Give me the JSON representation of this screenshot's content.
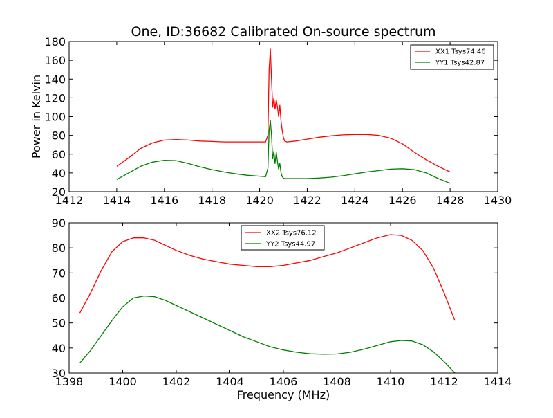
{
  "figure": {
    "title": "One, ID:36682 Calibrated On-source spectrum",
    "ylabel_top": "Power in Kelvin",
    "xlabel_bottom": "Frequency (MHz)"
  },
  "chart_data": [
    {
      "type": "line",
      "title": "One, ID:36682 Calibrated On-source spectrum",
      "xlabel": "",
      "ylabel": "Power in Kelvin",
      "xlim": [
        1412,
        1430
      ],
      "ylim": [
        20,
        180
      ],
      "xticks": [
        1412,
        1414,
        1416,
        1418,
        1420,
        1422,
        1424,
        1426,
        1428,
        1430
      ],
      "yticks": [
        20,
        40,
        60,
        80,
        100,
        120,
        140,
        160,
        180
      ],
      "grid": false,
      "legend": "top-right",
      "series": [
        {
          "name": "XX1 Tsys74.46",
          "color": "#ff0000",
          "x": [
            1414.0,
            1414.5,
            1415.0,
            1415.5,
            1416.0,
            1416.5,
            1417.0,
            1417.5,
            1418.0,
            1418.5,
            1419.0,
            1419.5,
            1420.0,
            1420.25,
            1420.35,
            1420.4,
            1420.45,
            1420.5,
            1420.55,
            1420.6,
            1420.65,
            1420.7,
            1420.75,
            1420.8,
            1420.85,
            1420.9,
            1420.95,
            1421.0,
            1421.05,
            1421.15,
            1421.5,
            1422.0,
            1422.5,
            1423.0,
            1423.5,
            1424.0,
            1424.5,
            1425.0,
            1425.5,
            1426.0,
            1426.5,
            1427.0,
            1427.5,
            1428.0
          ],
          "y": [
            47,
            56,
            66,
            72,
            75,
            75.5,
            75,
            74,
            73.5,
            73,
            73,
            73,
            73,
            73,
            80,
            150,
            172,
            140,
            110,
            120,
            108,
            118,
            110,
            100,
            112,
            95,
            85,
            78,
            74,
            73,
            74,
            76,
            78,
            79.5,
            80.5,
            81,
            81,
            80,
            77,
            71,
            62,
            54,
            47,
            41
          ]
        },
        {
          "name": "YY1 Tsys42.87",
          "color": "#008000",
          "x": [
            1414.0,
            1414.5,
            1415.0,
            1415.5,
            1416.0,
            1416.5,
            1417.0,
            1417.5,
            1418.0,
            1418.5,
            1419.0,
            1419.5,
            1420.0,
            1420.25,
            1420.35,
            1420.4,
            1420.45,
            1420.5,
            1420.55,
            1420.6,
            1420.65,
            1420.7,
            1420.75,
            1420.8,
            1420.85,
            1420.9,
            1420.95,
            1421.0,
            1421.05,
            1421.15,
            1421.5,
            1422.0,
            1422.5,
            1423.0,
            1423.5,
            1424.0,
            1424.5,
            1425.0,
            1425.5,
            1426.0,
            1426.5,
            1427.0,
            1427.5,
            1428.0
          ],
          "y": [
            33,
            40,
            47,
            51.5,
            53.5,
            53,
            50,
            46.5,
            43.5,
            41,
            39,
            37.5,
            36.5,
            36,
            45,
            85,
            96,
            80,
            55,
            63,
            50,
            62,
            52,
            44,
            50,
            40,
            36,
            34.5,
            34,
            34,
            34,
            34,
            34.5,
            35.5,
            37,
            39,
            41,
            42.5,
            44,
            44.5,
            43.5,
            40,
            34,
            29
          ]
        }
      ]
    },
    {
      "type": "line",
      "title": "",
      "xlabel": "Frequency (MHz)",
      "ylabel": "",
      "xlim": [
        1398,
        1414
      ],
      "ylim": [
        30,
        90
      ],
      "xticks": [
        1398,
        1400,
        1402,
        1404,
        1406,
        1408,
        1410,
        1412,
        1414
      ],
      "yticks": [
        30,
        40,
        50,
        60,
        70,
        80,
        90
      ],
      "grid": false,
      "legend": "top-center",
      "series": [
        {
          "name": "XX2 Tsys76.12",
          "color": "#ff0000",
          "x": [
            1398.4,
            1398.8,
            1399.2,
            1399.6,
            1400.0,
            1400.4,
            1400.8,
            1401.2,
            1401.6,
            1402.0,
            1402.5,
            1403.0,
            1403.5,
            1404.0,
            1404.5,
            1405.0,
            1405.5,
            1406.0,
            1406.5,
            1407.0,
            1407.5,
            1408.0,
            1408.5,
            1409.0,
            1409.5,
            1410.0,
            1410.4,
            1410.8,
            1411.2,
            1411.6,
            1412.0,
            1412.4
          ],
          "y": [
            54,
            62,
            71,
            78.5,
            82.5,
            84,
            84,
            83,
            81,
            79,
            77,
            75.5,
            74.5,
            73.5,
            73,
            72.5,
            72.5,
            73,
            74,
            75,
            76.5,
            78,
            80,
            82,
            84,
            85.3,
            85,
            83,
            79,
            72,
            62,
            51
          ]
        },
        {
          "name": "YY2 Tsys44.97",
          "color": "#008000",
          "x": [
            1398.4,
            1398.8,
            1399.2,
            1399.6,
            1400.0,
            1400.4,
            1400.8,
            1401.2,
            1401.6,
            1402.0,
            1402.5,
            1403.0,
            1403.5,
            1404.0,
            1404.5,
            1405.0,
            1405.5,
            1406.0,
            1406.5,
            1407.0,
            1407.5,
            1408.0,
            1408.5,
            1409.0,
            1409.5,
            1410.0,
            1410.4,
            1410.8,
            1411.2,
            1411.6,
            1412.0,
            1412.4
          ],
          "y": [
            34,
            39,
            45,
            51,
            56.5,
            60,
            60.8,
            60.5,
            59,
            57,
            54.5,
            52,
            49.5,
            47,
            44.5,
            42.5,
            40.5,
            39.2,
            38.3,
            37.7,
            37.5,
            37.6,
            38.3,
            39.5,
            41,
            42.5,
            43,
            42.8,
            41.3,
            38.5,
            34.5,
            30
          ]
        }
      ]
    }
  ]
}
